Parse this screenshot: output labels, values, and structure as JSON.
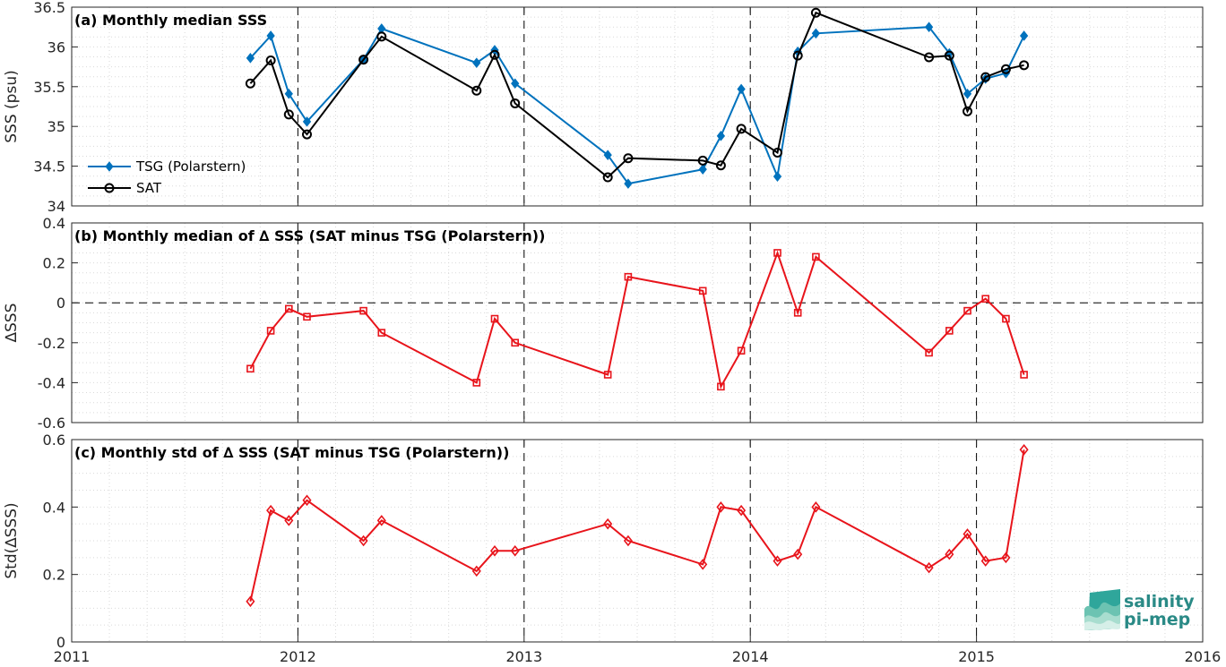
{
  "colors": {
    "tsg": "#0072bd",
    "sat": "#000000",
    "delta": "#e8141b",
    "grid": "#d9d9d9",
    "axis": "#262626"
  },
  "logo": {
    "line1": "salinity",
    "line2": "pi-mep",
    "icon": "wave-logo-icon"
  },
  "chart_data": [
    {
      "type": "line",
      "title": "(a) Monthly median SSS",
      "ylabel": "SSS (psu)",
      "xlim": [
        2011,
        2016
      ],
      "ylim": [
        34,
        36.5
      ],
      "yticks": [
        34,
        34.5,
        35,
        35.5,
        36,
        36.5
      ],
      "yticklabels": [
        "34",
        "34.5",
        "35",
        "35.5",
        "36",
        "36.5"
      ],
      "legend": "middle-left",
      "grid": true,
      "series": [
        {
          "name": "TSG (Polarstern)",
          "marker": "diamond-filled",
          "x": [
            2011.79,
            2011.88,
            2011.96,
            2012.04,
            2012.29,
            2012.37,
            2012.79,
            2012.87,
            2012.96,
            2013.37,
            2013.46,
            2013.79,
            2013.87,
            2013.96,
            2014.12,
            2014.21,
            2014.29,
            2014.79,
            2014.88,
            2014.96,
            2015.04,
            2015.13,
            2015.21
          ],
          "y": [
            35.86,
            36.14,
            35.41,
            35.06,
            35.84,
            36.23,
            35.8,
            35.96,
            35.54,
            34.64,
            34.28,
            34.46,
            34.88,
            35.47,
            34.37,
            35.94,
            36.17,
            36.25,
            35.92,
            35.41,
            35.6,
            35.67,
            36.14
          ]
        },
        {
          "name": "SAT",
          "marker": "circle-open",
          "x": [
            2011.79,
            2011.88,
            2011.96,
            2012.04,
            2012.29,
            2012.37,
            2012.79,
            2012.87,
            2012.96,
            2013.37,
            2013.46,
            2013.79,
            2013.87,
            2013.96,
            2014.12,
            2014.21,
            2014.29,
            2014.79,
            2014.88,
            2014.96,
            2015.04,
            2015.13,
            2015.21
          ],
          "y": [
            35.54,
            35.83,
            35.15,
            34.9,
            35.84,
            36.13,
            35.45,
            35.9,
            35.29,
            34.36,
            34.6,
            34.57,
            34.51,
            34.97,
            34.67,
            35.89,
            36.43,
            35.87,
            35.89,
            35.19,
            35.62,
            35.72,
            35.77
          ]
        }
      ]
    },
    {
      "type": "line",
      "title": "(b) Monthly median of ∆ SSS (SAT minus TSG (Polarstern))",
      "ylabel": "∆SSS",
      "xlim": [
        2011,
        2016
      ],
      "ylim": [
        -0.6,
        0.4
      ],
      "yticks": [
        -0.6,
        -0.4,
        -0.2,
        0,
        0.2,
        0.4
      ],
      "yticklabels": [
        "-0.6",
        "-0.4",
        "-0.2",
        "0",
        "0.2",
        "0.4"
      ],
      "zero_line": 0,
      "grid": true,
      "series": [
        {
          "marker": "square-open",
          "x": [
            2011.79,
            2011.88,
            2011.96,
            2012.04,
            2012.29,
            2012.37,
            2012.79,
            2012.87,
            2012.96,
            2013.37,
            2013.46,
            2013.79,
            2013.87,
            2013.96,
            2014.12,
            2014.21,
            2014.29,
            2014.79,
            2014.88,
            2014.96,
            2015.04,
            2015.13,
            2015.21
          ],
          "y": [
            -0.33,
            -0.14,
            -0.03,
            -0.07,
            -0.04,
            -0.15,
            -0.4,
            -0.08,
            -0.2,
            -0.36,
            0.13,
            0.06,
            -0.42,
            -0.24,
            0.25,
            -0.05,
            0.23,
            -0.25,
            -0.14,
            -0.04,
            0.02,
            -0.08,
            -0.36
          ]
        }
      ]
    },
    {
      "type": "line",
      "title": "(c) Monthly std of ∆ SSS (SAT minus TSG (Polarstern))",
      "ylabel": "Std(∆SSS)",
      "xlabel": "",
      "xlim": [
        2011,
        2016
      ],
      "ylim": [
        0,
        0.6
      ],
      "yticks": [
        0,
        0.2,
        0.4,
        0.6
      ],
      "yticklabels": [
        "0",
        "0.2",
        "0.4",
        "0.6"
      ],
      "xticks": [
        2011,
        2012,
        2013,
        2014,
        2015,
        2016
      ],
      "xticklabels": [
        "2011",
        "2012",
        "2013",
        "2014",
        "2015",
        "2016"
      ],
      "grid": true,
      "series": [
        {
          "marker": "diamond-open",
          "x": [
            2011.79,
            2011.88,
            2011.96,
            2012.04,
            2012.29,
            2012.37,
            2012.79,
            2012.87,
            2012.96,
            2013.37,
            2013.46,
            2013.79,
            2013.87,
            2013.96,
            2014.12,
            2014.21,
            2014.29,
            2014.79,
            2014.88,
            2014.96,
            2015.04,
            2015.13,
            2015.21
          ],
          "y": [
            0.12,
            0.39,
            0.36,
            0.42,
            0.3,
            0.36,
            0.21,
            0.27,
            0.27,
            0.35,
            0.3,
            0.23,
            0.4,
            0.39,
            0.24,
            0.26,
            0.4,
            0.22,
            0.26,
            0.32,
            0.24,
            0.25,
            0.57
          ]
        }
      ]
    }
  ]
}
